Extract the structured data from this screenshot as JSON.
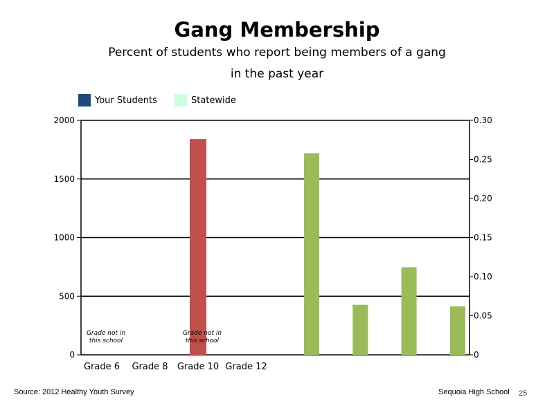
{
  "header": {
    "title": "Gang Membership",
    "subtitle_line1": "Percent of students who report being members of a gang",
    "subtitle_line2": "in the past year"
  },
  "legend": [
    {
      "label": "Your Students",
      "color": "#1f497d"
    },
    {
      "label": "Statewide",
      "color": "#ccffdd"
    }
  ],
  "footer": {
    "source": "Source: 2012 Healthy Youth Survey",
    "school": "Sequoia High School",
    "page": "25"
  },
  "chart_data": {
    "type": "bar",
    "categories": [
      "Grade 6",
      "Grade 8",
      "Grade 10",
      "Grade 12"
    ],
    "primary_axis": {
      "ylim": [
        0,
        2000
      ],
      "ticks": [
        "0",
        "500",
        "1000",
        "1500",
        "2000"
      ]
    },
    "secondary_axis": {
      "ylim": [
        0,
        0.3
      ],
      "ticks": [
        "0",
        "0.05",
        "0.10",
        "0.15",
        "0.20",
        "0.25",
        "0.30"
      ]
    },
    "grid": true,
    "legend_position": "top-left",
    "series": [
      {
        "axis": "primary",
        "color": "#c0504d",
        "values": [
          null,
          null,
          1840,
          null
        ]
      },
      {
        "axis": "secondary",
        "color": "#9bbb59",
        "values": [
          0.258,
          0.064,
          0.112,
          0.062
        ]
      }
    ],
    "annotations": [
      {
        "category_index": 0,
        "text_line1": "Grade not in",
        "text_line2": "this school"
      },
      {
        "category_index": 2,
        "text_line1": "Grade not in",
        "text_line2": "this school"
      }
    ]
  }
}
